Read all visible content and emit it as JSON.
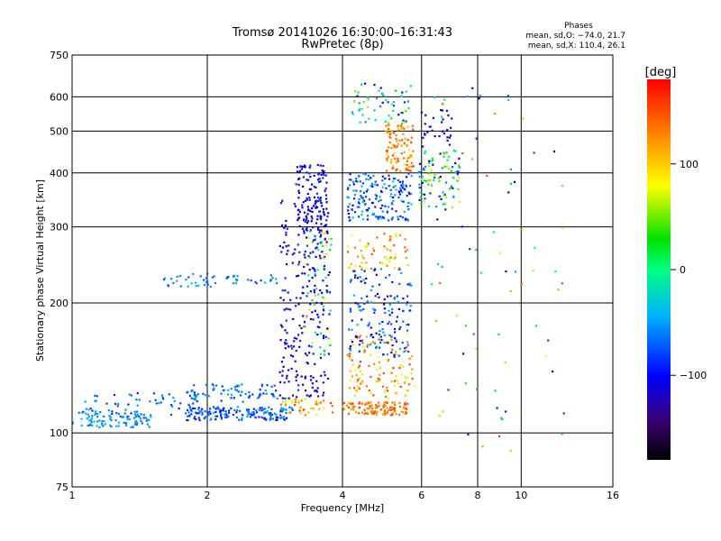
{
  "chart_data": {
    "type": "scatter",
    "title": "Tromsø 20141026 16:30:00–16:31:43",
    "subtitle": "RwPretec (8p)",
    "xlabel": "Frequency [MHz]",
    "ylabel": "Stationary phase Virtual Height [km]",
    "x_scale": "log",
    "y_scale": "log",
    "xlim": [
      1,
      16
    ],
    "ylim": [
      75,
      750
    ],
    "x_ticks": [
      1,
      2,
      4,
      6,
      8,
      10,
      16
    ],
    "y_ticks": [
      75,
      100,
      200,
      300,
      400,
      500,
      600,
      750
    ],
    "grid": true,
    "stats": {
      "heading": "Phases",
      "line1": "mean, sd,O: −74.0, 21.7",
      "line2": "mean, sd,X: 110.4, 26.1"
    },
    "colorbar": {
      "label": "[deg]",
      "range": [
        -180,
        180
      ],
      "ticks": [
        "100",
        "0",
        "−100"
      ],
      "tick_values": [
        100,
        0,
        -100
      ]
    },
    "clusters": [
      {
        "x": [
          1.0,
          1.5
        ],
        "y": [
          103,
          112
        ],
        "phase": [
          -75,
          -35
        ],
        "n": 90
      },
      {
        "x": [
          1.05,
          1.9
        ],
        "y": [
          110,
          125
        ],
        "phase": [
          -95,
          -40
        ],
        "n": 60
      },
      {
        "x": [
          1.8,
          3.1
        ],
        "y": [
          107,
          115
        ],
        "phase": [
          -100,
          -45
        ],
        "n": 160
      },
      {
        "x": [
          1.8,
          2.9
        ],
        "y": [
          118,
          130
        ],
        "phase": [
          -90,
          -40
        ],
        "n": 70
      },
      {
        "x": [
          1.6,
          2.1
        ],
        "y": [
          218,
          235
        ],
        "phase": [
          -80,
          -40
        ],
        "n": 30
      },
      {
        "x": [
          2.2,
          2.9
        ],
        "y": [
          222,
          232
        ],
        "phase": [
          -80,
          -40
        ],
        "n": 25
      },
      {
        "x": [
          2.9,
          3.8
        ],
        "y": [
          110,
          120
        ],
        "phase": [
          60,
          160
        ],
        "n": 40
      },
      {
        "x": [
          2.9,
          3.75
        ],
        "y": [
          120,
          350
        ],
        "phase": [
          -140,
          -80
        ],
        "n": 260
      },
      {
        "x": [
          3.15,
          3.7
        ],
        "y": [
          280,
          420
        ],
        "phase": [
          -130,
          -80
        ],
        "n": 120
      },
      {
        "x": [
          3.3,
          3.8
        ],
        "y": [
          150,
          300
        ],
        "phase": [
          -40,
          100
        ],
        "n": 50
      },
      {
        "x": [
          4.0,
          5.6
        ],
        "y": [
          110,
          118
        ],
        "phase": [
          110,
          160
        ],
        "n": 110
      },
      {
        "x": [
          4.1,
          5.8
        ],
        "y": [
          120,
          170
        ],
        "phase": [
          60,
          160
        ],
        "n": 120
      },
      {
        "x": [
          4.1,
          5.7
        ],
        "y": [
          150,
          240
        ],
        "phase": [
          -120,
          -40
        ],
        "n": 150
      },
      {
        "x": [
          4.1,
          5.6
        ],
        "y": [
          240,
          290
        ],
        "phase": [
          60,
          150
        ],
        "n": 60
      },
      {
        "x": [
          4.1,
          5.7
        ],
        "y": [
          310,
          400
        ],
        "phase": [
          -110,
          -30
        ],
        "n": 180
      },
      {
        "x": [
          5.0,
          5.75
        ],
        "y": [
          400,
          520
        ],
        "phase": [
          90,
          160
        ],
        "n": 100
      },
      {
        "x": [
          4.2,
          5.7
        ],
        "y": [
          520,
          650
        ],
        "phase": [
          -120,
          60
        ],
        "n": 60
      },
      {
        "x": [
          5.9,
          7.3
        ],
        "y": [
          330,
          460
        ],
        "phase": [
          -110,
          80
        ],
        "n": 90
      },
      {
        "x": [
          6.0,
          7.0
        ],
        "y": [
          460,
          560
        ],
        "phase": [
          -130,
          -90
        ],
        "n": 30
      },
      {
        "x": [
          6.3,
          12.5
        ],
        "y": [
          90,
          650
        ],
        "phase": [
          -150,
          160
        ],
        "n": 80
      }
    ]
  }
}
